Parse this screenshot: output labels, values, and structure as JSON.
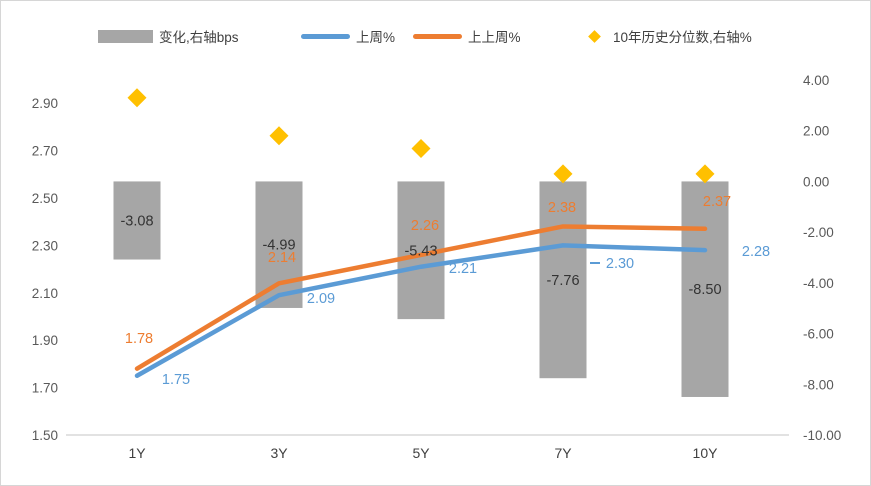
{
  "chart_data": {
    "type": "combo",
    "title": "",
    "categories": [
      "1Y",
      "3Y",
      "5Y",
      "7Y",
      "10Y"
    ],
    "series": [
      {
        "name": "变化,右轴bps",
        "type": "bar",
        "axis": "right",
        "color": "#a6a6a6",
        "values": [
          -3.08,
          -4.99,
          -5.43,
          -7.76,
          -8.5
        ],
        "labels_shown": true,
        "label_color": "#333333"
      },
      {
        "name": "上周%",
        "type": "line",
        "axis": "left",
        "color": "#5b9bd5",
        "values": [
          1.75,
          2.09,
          2.21,
          2.3,
          2.28
        ],
        "labels_shown": true,
        "label_color": "#5b9bd5"
      },
      {
        "name": "上上周%",
        "type": "line",
        "axis": "left",
        "color": "#ed7d31",
        "values": [
          1.78,
          2.14,
          2.26,
          2.38,
          2.37
        ],
        "labels_shown": true,
        "label_color": "#ed7d31"
      },
      {
        "name": "10年历史分位数,右轴%",
        "type": "scatter-diamond",
        "axis": "right",
        "color": "#ffc000",
        "values": [
          3.3,
          1.8,
          1.3,
          0.3,
          0.3
        ],
        "values_note": "estimated from right axis position",
        "labels_shown": false
      }
    ],
    "left_axis": {
      "ticks": [
        "2.90",
        "2.70",
        "2.50",
        "2.30",
        "2.10",
        "1.90",
        "1.70",
        "1.50"
      ],
      "min": 1.5,
      "tick_step": 0.2
    },
    "right_axis": {
      "ticks": [
        "4.00",
        "2.00",
        "0.00",
        "-2.00",
        "-4.00",
        "-6.00",
        "-8.00",
        "-10.00"
      ],
      "min": -10.0,
      "max": 4.0,
      "tick_step": 2.0
    },
    "grid": false,
    "legend_position": "top",
    "axis_line_color": "#d9d9d9",
    "axis_text_color": "#595959",
    "category_text_color": "#404040"
  }
}
